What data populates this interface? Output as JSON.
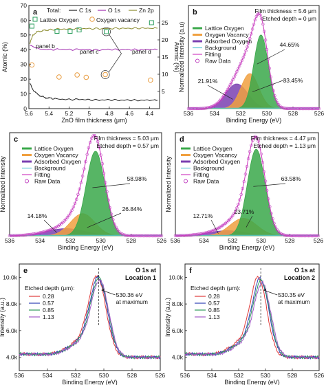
{
  "chart_data": [
    {
      "id": "a",
      "type": "line",
      "panel_letter": "a",
      "xlabel": "ZnO film thickness (μm)",
      "ylabel_left": "Atomic (%)",
      "ylabel_right": "Atomic (%)",
      "xlim": [
        5.6,
        4.3
      ],
      "xticks": [
        5.6,
        5.4,
        5.2,
        5.0,
        4.8,
        4.6,
        4.4
      ],
      "ylim_left": [
        0,
        70
      ],
      "yticks_left": [
        0,
        10,
        20,
        30,
        40,
        50,
        60,
        70
      ],
      "ylim_right": [
        0,
        30
      ],
      "yticks_right": [
        5,
        10,
        15,
        20,
        25
      ],
      "legend_title": "Total:",
      "series": [
        {
          "name": "C 1s",
          "color": "#222222",
          "values": [
            [
              5.59,
              17
            ],
            [
              5.56,
              13
            ],
            [
              5.52,
              10
            ],
            [
              5.48,
              8.5
            ],
            [
              5.44,
              7.5
            ],
            [
              5.38,
              7
            ],
            [
              5.3,
              6.5
            ],
            [
              5.2,
              6.2
            ],
            [
              5.1,
              6.3
            ],
            [
              5.0,
              6
            ],
            [
              4.9,
              5.8
            ],
            [
              4.8,
              6
            ],
            [
              4.7,
              5.7
            ],
            [
              4.6,
              5.8
            ],
            [
              4.5,
              5.6
            ],
            [
              4.4,
              5.8
            ],
            [
              4.32,
              5.7
            ]
          ]
        },
        {
          "name": "O 1s",
          "color": "#a22fb0",
          "values": [
            [
              5.59,
              43
            ],
            [
              5.5,
              40.5
            ],
            [
              5.4,
              40
            ],
            [
              5.3,
              40.3
            ],
            [
              5.2,
              40
            ],
            [
              5.1,
              40.2
            ],
            [
              5.0,
              40
            ],
            [
              4.9,
              39.8
            ],
            [
              4.8,
              40.2
            ],
            [
              4.7,
              40
            ],
            [
              4.6,
              40.1
            ],
            [
              4.5,
              40
            ],
            [
              4.4,
              40.2
            ],
            [
              4.32,
              40
            ]
          ]
        },
        {
          "name": "Zn 2p",
          "color": "#8b8b2e",
          "values": [
            [
              5.59,
              44
            ],
            [
              5.56,
              50
            ],
            [
              5.52,
              52
            ],
            [
              5.46,
              53
            ],
            [
              5.4,
              53.5
            ],
            [
              5.3,
              54
            ],
            [
              5.2,
              54
            ],
            [
              5.1,
              54.2
            ],
            [
              5.0,
              54.3
            ],
            [
              4.9,
              54.3
            ],
            [
              4.8,
              54.4
            ],
            [
              4.7,
              54.5
            ],
            [
              4.6,
              54.5
            ],
            [
              4.5,
              54.6
            ],
            [
              4.4,
              54.6
            ],
            [
              4.32,
              54.6
            ]
          ]
        }
      ],
      "markers": [
        {
          "name": "Lattice Oxygen",
          "color": "#2a9d5c",
          "shape": "square",
          "points": [
            [
              5.57,
              24
            ],
            [
              5.32,
              22.5
            ],
            [
              5.19,
              22.5
            ],
            [
              5.1,
              22.9
            ],
            [
              4.83,
              22.4
            ],
            [
              4.38,
              25
            ]
          ]
        },
        {
          "name": "Oxygen vacancy",
          "color": "#e89a3c",
          "shape": "circle",
          "points": [
            [
              5.57,
              12.7
            ],
            [
              5.3,
              9.2
            ],
            [
              5.12,
              9.8
            ],
            [
              5.03,
              9.1
            ],
            [
              4.84,
              9.9
            ],
            [
              4.39,
              8.3
            ]
          ]
        }
      ],
      "annotations": [
        "panel b",
        "panel c",
        "panel d"
      ]
    },
    {
      "id": "b",
      "type": "area",
      "panel_letter": "b",
      "xlabel": "Binding Energy (eV)",
      "ylabel": "Normalized Intensity (a.u)",
      "xlim": [
        536,
        526
      ],
      "xticks": [
        536,
        534,
        532,
        530,
        528,
        526
      ],
      "info_line1": "Film thickness = 5.6 μm",
      "info_line2": "Etched depth = 0 μm",
      "peaks": [
        {
          "name": "Lattice Oxygen",
          "center": 530.45,
          "amplitude": 0.715,
          "fwhm": 1.3,
          "percent": "44.65%"
        },
        {
          "name": "Oxygen Vacancy",
          "center": 531.3,
          "amplitude": 0.34,
          "fwhm": 1.6,
          "percent": "33.45%"
        },
        {
          "name": "Adsorbed Oxygen",
          "center": 532.3,
          "amplitude": 0.24,
          "fwhm": 2.0,
          "percent": "21.91%"
        }
      ],
      "background": 0.0
    },
    {
      "id": "c",
      "type": "area",
      "panel_letter": "c",
      "xlabel": "Binding Energy (eV)",
      "ylabel": "Normalized Intensity",
      "xlim": [
        536,
        526
      ],
      "xticks": [
        536,
        534,
        532,
        530,
        528,
        526
      ],
      "info_line1": "Film thickness = 5.03 μm",
      "info_line2": "Etched depth = 0.57 μm",
      "peaks": [
        {
          "name": "Lattice Oxygen",
          "center": 530.35,
          "amplitude": 0.82,
          "fwhm": 1.45,
          "percent": "58.98%"
        },
        {
          "name": "Oxygen Vacancy",
          "center": 531.2,
          "amplitude": 0.215,
          "fwhm": 1.9,
          "percent": "26.84%"
        },
        {
          "name": "Adsorbed Oxygen",
          "center": 532.3,
          "amplitude": 0.07,
          "fwhm": 3.0,
          "percent": "14.18%"
        }
      ],
      "background": 0.0
    },
    {
      "id": "d",
      "type": "area",
      "panel_letter": "d",
      "xlabel": "Binding Energy (eV)",
      "ylabel": "Normalized Intensity",
      "xlim": [
        536,
        526
      ],
      "xticks": [
        536,
        534,
        532,
        530,
        528,
        526
      ],
      "info_line1": "Film thickness = 4.47 μm",
      "info_line2": "Etched depth = 1.13 μm",
      "peaks": [
        {
          "name": "Lattice Oxygen",
          "center": 530.35,
          "amplitude": 0.84,
          "fwhm": 1.45,
          "percent": "63.58%"
        },
        {
          "name": "Oxygen Vacancy",
          "center": 531.25,
          "amplitude": 0.17,
          "fwhm": 2.2,
          "percent": "23.71%"
        },
        {
          "name": "Adsorbed Oxygen",
          "center": 532.4,
          "amplitude": 0.05,
          "fwhm": 3.0,
          "percent": "12.71%"
        }
      ],
      "background": 0.0
    },
    {
      "id": "e",
      "type": "line",
      "panel_letter": "e",
      "title_line1": "O 1s at",
      "title_line2": "Location 1",
      "xlabel": "Binding Energy (eV)",
      "ylabel": "Intensity (a.u.)",
      "xlim": [
        536,
        526
      ],
      "xticks": [
        536,
        534,
        532,
        530,
        528,
        526
      ],
      "ylim": [
        3000,
        11000
      ],
      "yticks": [
        4000,
        6000,
        8000,
        10000
      ],
      "ytick_labels": [
        "4.0k",
        "6.0k",
        "8.0k",
        "10.0k"
      ],
      "legend_title": "Etched depth (μm):",
      "peak_label_line1": "530.36 eV",
      "peak_label_line2": "at maximum",
      "peak_position": 530.36,
      "series": [
        {
          "name": "0.28",
          "color": "#e03a3a",
          "center": 530.45,
          "peak": 9900
        },
        {
          "name": "0.57",
          "color": "#2f3fb5",
          "center": 530.36,
          "peak": 9800
        },
        {
          "name": "0.85",
          "color": "#2e9a5a",
          "center": 530.3,
          "peak": 9750
        },
        {
          "name": "1.13",
          "color": "#a45ac8",
          "center": 530.25,
          "peak": 9600
        }
      ]
    },
    {
      "id": "f",
      "type": "line",
      "panel_letter": "f",
      "title_line1": "O 1s at",
      "title_line2": "Location 2",
      "xlabel": "Binding Energy (eV)",
      "ylabel": "Intensity (a.u.)",
      "xlim": [
        536,
        526
      ],
      "xticks": [
        536,
        534,
        532,
        530,
        528,
        526
      ],
      "ylim": [
        3000,
        11000
      ],
      "yticks": [
        4000,
        6000,
        8000,
        10000
      ],
      "ytick_labels": [
        "4.0k",
        "6.0k",
        "8.0k",
        "10.0k"
      ],
      "legend_title": "Etched depth (μm):",
      "peak_label_line1": "530.35 eV",
      "peak_label_line2": "at maximum",
      "peak_position": 530.35,
      "series": [
        {
          "name": "0.28",
          "color": "#e03a3a",
          "center": 530.5,
          "peak": 9800
        },
        {
          "name": "0.57",
          "color": "#2f3fb5",
          "center": 530.35,
          "peak": 9700
        },
        {
          "name": "0.85",
          "color": "#2e9a5a",
          "center": 530.28,
          "peak": 9550
        },
        {
          "name": "1.13",
          "color": "#a45ac8",
          "center": 530.2,
          "peak": 9400
        }
      ]
    }
  ],
  "colors": {
    "lattice": "#3aa84a",
    "vacancy": "#f0a040",
    "adsorbed": "#7a3fb0",
    "background": "#5fc8d6",
    "fitting": "#d040c0",
    "raw": "#c040c0"
  },
  "legend_labels": [
    "Lattice Oxygen",
    "Oxygen Vacancy",
    "Adsorbed Oxygen",
    "Background",
    "Fitting",
    "Raw Data"
  ]
}
